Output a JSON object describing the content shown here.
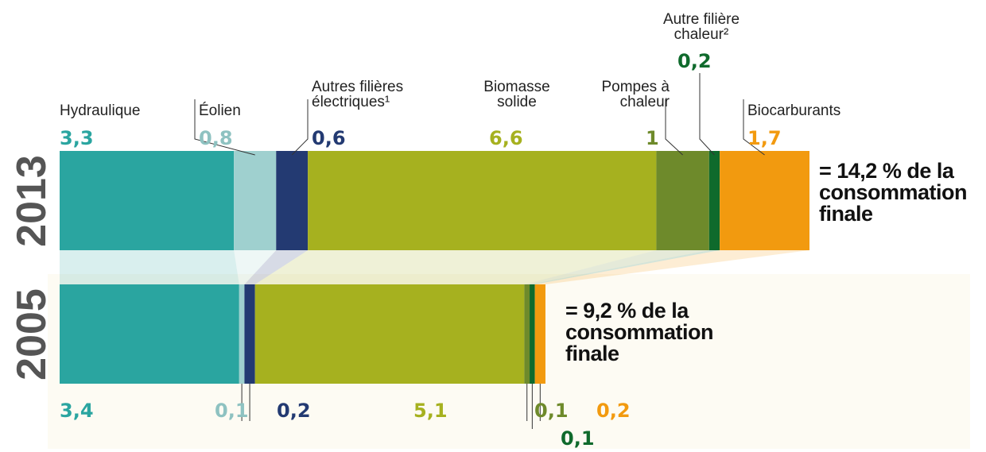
{
  "chart_data": {
    "type": "stacked-bar",
    "categories": [
      "2013",
      "2005"
    ],
    "series": [
      {
        "name": "Hydraulique",
        "color": "#2aa5a0",
        "values": [
          3.3,
          3.4
        ],
        "value_labels": [
          "3,3",
          "3,4"
        ]
      },
      {
        "name": "Éolien",
        "color": "#9fd0cf",
        "values": [
          0.8,
          0.1
        ],
        "value_labels": [
          "0,8",
          "0,1"
        ]
      },
      {
        "name": "Autres filières électriques¹",
        "color": "#233a72",
        "values": [
          0.6,
          0.2
        ],
        "value_labels": [
          "0,6",
          "0,2"
        ]
      },
      {
        "name": "Biomasse solide",
        "color": "#a6b11f",
        "values": [
          6.6,
          5.1
        ],
        "value_labels": [
          "6,6",
          "5,1"
        ]
      },
      {
        "name": "Pompes à chaleur",
        "color": "#6e8a2b",
        "values": [
          1,
          0.1
        ],
        "value_labels": [
          "1",
          "0,1"
        ]
      },
      {
        "name": "Autre filière chaleur²",
        "color": "#0f6a2c",
        "values": [
          0.2,
          0.1
        ],
        "value_labels": [
          "0,2",
          "0,1"
        ]
      },
      {
        "name": "Biocarburants",
        "color": "#f29a0f",
        "values": [
          1.7,
          0.2
        ],
        "value_labels": [
          "1,7",
          "0,2"
        ]
      }
    ],
    "annotations": [
      "= 14,2 % de la consommation finale",
      "= 9,2 % de la consommation finale"
    ]
  }
}
